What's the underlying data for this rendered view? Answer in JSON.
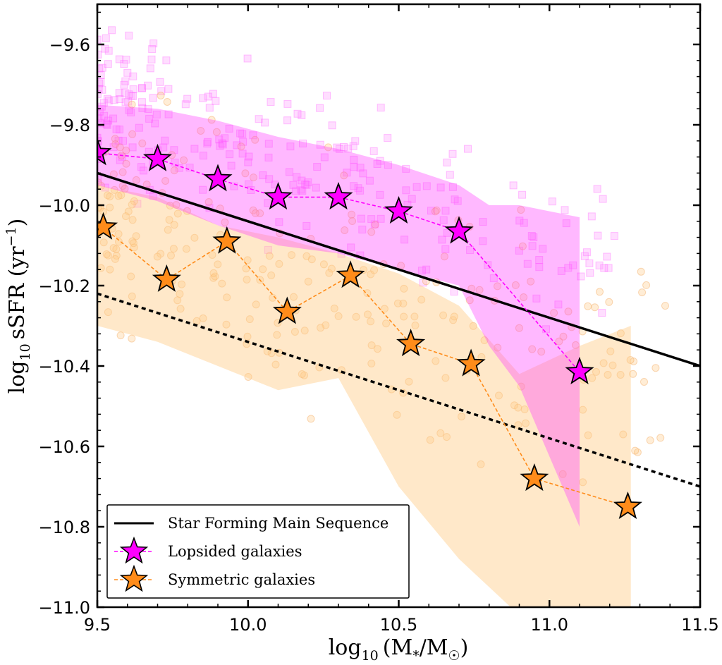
{
  "chart_data": {
    "type": "scatter",
    "xlabel_base": "log",
    "xlabel_sub": "10",
    "xlabel_rest": "(M",
    "xlabel_star": "*",
    "xlabel_mid": "/M",
    "xlabel_sun": "☉",
    "xlabel_close": ")",
    "ylabel_base": "log",
    "ylabel_sub": "10",
    "ylabel_rest": "sSFR (yr",
    "ylabel_sup": "−1",
    "ylabel_close": ")",
    "xlim": [
      9.5,
      11.5
    ],
    "ylim": [
      -11.0,
      -9.5
    ],
    "xticks": [
      9.5,
      10.0,
      10.5,
      11.0,
      11.5
    ],
    "xtick_labels": [
      "9.5",
      "10.0",
      "10.5",
      "11.0",
      "11.5"
    ],
    "yticks": [
      -9.6,
      -9.8,
      -10.0,
      -10.2,
      -10.4,
      -10.6,
      -10.8,
      -11.0
    ],
    "ytick_labels": [
      "−9.6",
      "−9.8",
      "−10.0",
      "−10.2",
      "−10.4",
      "−10.6",
      "−10.8",
      "−11.0"
    ],
    "colors": {
      "lopsided": "#ff00ff",
      "symmetric": "#ff8c1a",
      "main_sequence": "#000000"
    },
    "legend_position": "lower-left",
    "legend": [
      {
        "label": "Star Forming Main Sequence",
        "kind": "line"
      },
      {
        "label": "Lopsided galaxies",
        "kind": "star-magenta"
      },
      {
        "label": "Symmetric galaxies",
        "kind": "star-orange"
      }
    ],
    "main_sequence": {
      "x": [
        9.5,
        11.5
      ],
      "y": [
        -9.92,
        -10.4
      ]
    },
    "main_sequence_offset": {
      "x": [
        9.5,
        11.5
      ],
      "y": [
        -10.22,
        -10.7
      ]
    },
    "lopsided_median": {
      "x": [
        9.5,
        9.7,
        9.9,
        10.1,
        10.3,
        10.5,
        10.7,
        11.1
      ],
      "y": [
        -9.87,
        -9.885,
        -9.935,
        -9.98,
        -9.98,
        -10.015,
        -10.065,
        -10.415
      ]
    },
    "symmetric_median": {
      "x": [
        9.52,
        9.73,
        9.93,
        10.13,
        10.34,
        10.54,
        10.74,
        10.95,
        11.26
      ],
      "y": [
        -10.055,
        -10.185,
        -10.09,
        -10.265,
        -10.175,
        -10.345,
        -10.395,
        -10.68,
        -10.75
      ]
    },
    "lopsided_band": {
      "x": [
        9.5,
        9.7,
        9.9,
        10.1,
        10.3,
        10.5,
        10.7,
        10.8,
        10.9,
        11.1
      ],
      "upper": [
        -9.75,
        -9.76,
        -9.79,
        -9.83,
        -9.86,
        -9.9,
        -9.95,
        -10.0,
        -10.0,
        -10.03
      ],
      "lower": [
        -9.95,
        -9.99,
        -10.05,
        -10.1,
        -10.12,
        -10.16,
        -10.2,
        -10.35,
        -10.45,
        -10.8
      ]
    },
    "symmetric_band": {
      "x": [
        9.5,
        9.7,
        9.9,
        10.1,
        10.3,
        10.5,
        10.7,
        10.9,
        11.1,
        11.27
      ],
      "upper": [
        -9.95,
        -9.98,
        -10.05,
        -10.08,
        -10.12,
        -10.17,
        -10.25,
        -10.42,
        -10.35,
        -10.3
      ],
      "lower": [
        -10.3,
        -10.34,
        -10.4,
        -10.46,
        -10.43,
        -10.7,
        -10.88,
        -11.02,
        -11.0,
        -11.0
      ]
    }
  }
}
